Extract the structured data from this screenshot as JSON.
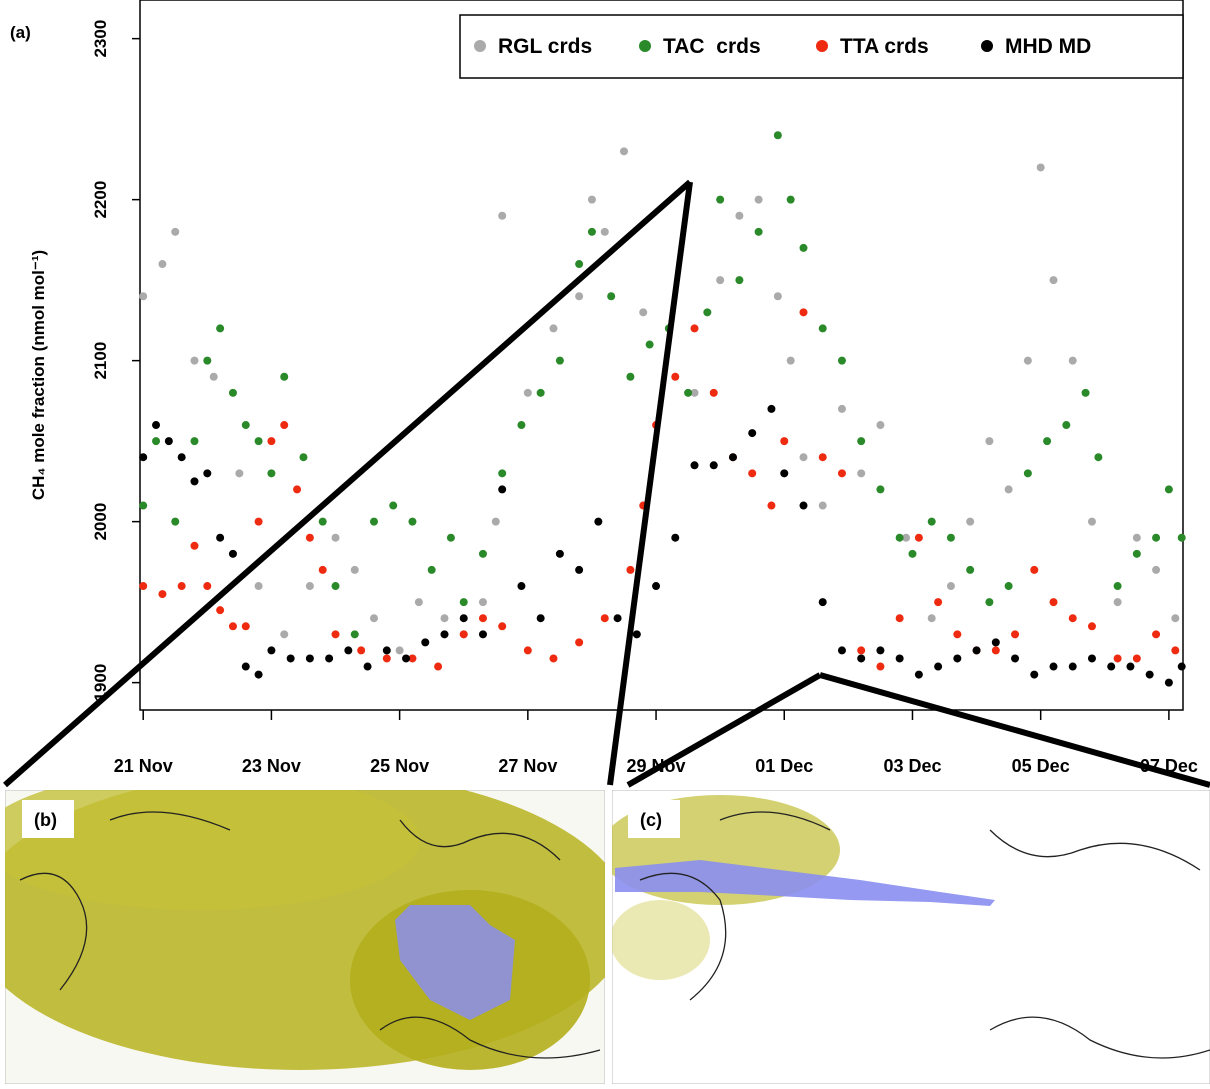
{
  "chart_data": {
    "type": "scatter",
    "panel_label": "(a)",
    "y_label": "CH₄ mole fraction (nmol mol⁻¹)",
    "xlim": [
      -0.05,
      16.22
    ],
    "xticks": [
      {
        "value": 0,
        "label": "21 Nov"
      },
      {
        "value": 2,
        "label": "23 Nov"
      },
      {
        "value": 4,
        "label": "25 Nov"
      },
      {
        "value": 6,
        "label": "27 Nov"
      },
      {
        "value": 8,
        "label": "29 Nov"
      },
      {
        "value": 10,
        "label": "01 Dec"
      },
      {
        "value": 12,
        "label": "03 Dec"
      },
      {
        "value": 14,
        "label": "05 Dec"
      },
      {
        "value": 16,
        "label": "07 Dec"
      }
    ],
    "ylim": [
      1883,
      2324
    ],
    "yticks": [
      1900,
      2000,
      2100,
      2200,
      2300
    ],
    "legend": "top-right",
    "series": [
      {
        "name": "RGL crds",
        "color": "#aaaaaa",
        "x": [
          0,
          0.3,
          0.5,
          0.8,
          1.1,
          1.5,
          1.8,
          2.2,
          2.6,
          3,
          3.3,
          3.6,
          4,
          4.3,
          4.7,
          5,
          5.3,
          5.5,
          5.6,
          6,
          6.4,
          6.8,
          7,
          7.2,
          7.5,
          7.8,
          8.2,
          8.6,
          9,
          9.3,
          9.6,
          9.9,
          10.1,
          10.3,
          10.6,
          10.9,
          11.2,
          11.5,
          11.9,
          12.3,
          12.6,
          12.9,
          13.2,
          13.5,
          13.8,
          14,
          14.2,
          14.5,
          14.8,
          15.2,
          15.5,
          15.8,
          16.1
        ],
        "values": [
          2140,
          2160,
          2180,
          2100,
          2090,
          2030,
          1960,
          1930,
          1960,
          1990,
          1970,
          1940,
          1920,
          1950,
          1940,
          1930,
          1950,
          2000,
          2190,
          2080,
          2120,
          2140,
          2200,
          2180,
          2230,
          2130,
          2120,
          2080,
          2150,
          2190,
          2200,
          2140,
          2100,
          2040,
          2010,
          2070,
          2030,
          2060,
          1990,
          1940,
          1960,
          2000,
          2050,
          2020,
          2100,
          2220,
          2150,
          2100,
          2000,
          1950,
          1990,
          1970,
          1940
        ]
      },
      {
        "name": "TAC  crds",
        "color": "#2a8a2a",
        "x": [
          0,
          0.2,
          0.5,
          0.8,
          1,
          1.2,
          1.4,
          1.6,
          1.8,
          2,
          2.2,
          2.5,
          2.8,
          3,
          3.3,
          3.6,
          3.9,
          4.2,
          4.5,
          4.8,
          5,
          5.3,
          5.6,
          5.9,
          6.2,
          6.5,
          6.8,
          7,
          7.3,
          7.6,
          7.9,
          8.2,
          8.5,
          8.8,
          9,
          9.3,
          9.6,
          9.9,
          10.1,
          10.3,
          10.6,
          10.9,
          11.2,
          11.5,
          11.8,
          12,
          12.3,
          12.6,
          12.9,
          13.2,
          13.5,
          13.8,
          14.1,
          14.4,
          14.7,
          14.9,
          15.2,
          15.5,
          15.8,
          16,
          16.2
        ],
        "values": [
          2010,
          2050,
          2000,
          2050,
          2100,
          2120,
          2080,
          2060,
          2050,
          2030,
          2090,
          2040,
          2000,
          1960,
          1930,
          2000,
          2010,
          2000,
          1970,
          1990,
          1950,
          1980,
          2030,
          2060,
          2080,
          2100,
          2160,
          2180,
          2140,
          2090,
          2110,
          2120,
          2080,
          2130,
          2200,
          2150,
          2180,
          2240,
          2200,
          2170,
          2120,
          2100,
          2050,
          2020,
          1990,
          1980,
          2000,
          1990,
          1970,
          1950,
          1960,
          2030,
          2050,
          2060,
          2080,
          2040,
          1960,
          1980,
          1990,
          2020,
          1990
        ]
      },
      {
        "name": "TTA crds",
        "color": "#ee2a10",
        "x": [
          0,
          0.3,
          0.6,
          0.8,
          1,
          1.2,
          1.4,
          1.6,
          1.8,
          2,
          2.2,
          2.4,
          2.6,
          2.8,
          3,
          3.4,
          3.8,
          4.2,
          4.6,
          5,
          5.3,
          5.6,
          6,
          6.4,
          6.8,
          7.2,
          7.6,
          7.8,
          8,
          8.3,
          8.6,
          8.9,
          9.2,
          9.5,
          9.8,
          10,
          10.3,
          10.6,
          10.9,
          11.2,
          11.5,
          11.8,
          12.1,
          12.4,
          12.7,
          13,
          13.3,
          13.6,
          13.9,
          14.2,
          14.5,
          14.8,
          15.2,
          15.5,
          15.8,
          16.1
        ],
        "values": [
          1960,
          1955,
          1960,
          1985,
          1960,
          1945,
          1935,
          1935,
          2000,
          2050,
          2060,
          2020,
          1990,
          1970,
          1930,
          1920,
          1915,
          1915,
          1910,
          1930,
          1940,
          1935,
          1920,
          1915,
          1925,
          1940,
          1970,
          2010,
          2060,
          2090,
          2120,
          2080,
          2040,
          2030,
          2010,
          2050,
          2130,
          2040,
          2030,
          1920,
          1910,
          1940,
          1990,
          1950,
          1930,
          1920,
          1920,
          1930,
          1970,
          1950,
          1940,
          1935,
          1915,
          1915,
          1930,
          1920
        ]
      },
      {
        "name": "MHD MD",
        "color": "#000000",
        "x": [
          0,
          0.2,
          0.4,
          0.6,
          0.8,
          1,
          1.2,
          1.4,
          1.6,
          1.8,
          2,
          2.3,
          2.6,
          2.9,
          3.2,
          3.5,
          3.8,
          4.1,
          4.4,
          4.7,
          5,
          5.3,
          5.6,
          5.9,
          6.2,
          6.5,
          6.8,
          7.1,
          7.4,
          7.7,
          8,
          8.3,
          8.6,
          8.9,
          9.2,
          9.5,
          9.8,
          10,
          10.3,
          10.6,
          10.9,
          11.2,
          11.5,
          11.8,
          12.1,
          12.4,
          12.7,
          13,
          13.3,
          13.6,
          13.9,
          14.2,
          14.5,
          14.8,
          15.1,
          15.4,
          15.7,
          16,
          16.2
        ],
        "values": [
          2040,
          2060,
          2050,
          2040,
          2025,
          2030,
          1990,
          1980,
          1910,
          1905,
          1920,
          1915,
          1915,
          1915,
          1920,
          1910,
          1920,
          1915,
          1925,
          1930,
          1940,
          1930,
          2020,
          1960,
          1940,
          1980,
          1970,
          2000,
          1940,
          1930,
          1960,
          1990,
          2035,
          2035,
          2040,
          2055,
          2070,
          2030,
          2010,
          1950,
          1920,
          1915,
          1920,
          1915,
          1905,
          1910,
          1915,
          1920,
          1925,
          1915,
          1905,
          1910,
          1910,
          1915,
          1910,
          1910,
          1905,
          1900,
          1910
        ]
      }
    ]
  },
  "maps": {
    "b": {
      "label": "(b)"
    },
    "c": {
      "label": "(c)"
    }
  }
}
